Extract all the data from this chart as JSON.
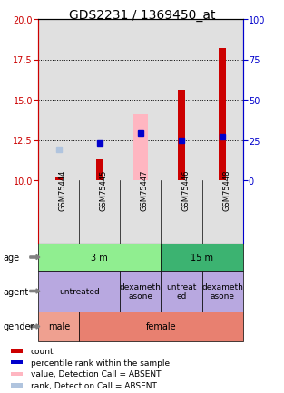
{
  "title": "GDS2231 / 1369450_at",
  "samples": [
    "GSM75444",
    "GSM75445",
    "GSM75447",
    "GSM75446",
    "GSM75448"
  ],
  "ylim_left": [
    10,
    20
  ],
  "ylim_right": [
    0,
    100
  ],
  "yticks_left": [
    10,
    12.5,
    15,
    17.5,
    20
  ],
  "yticks_right": [
    0,
    25,
    50,
    75,
    100
  ],
  "red_bars_top": [
    10.2,
    11.3,
    10.0,
    15.6,
    18.2
  ],
  "pink_bars_top": [
    10.0,
    10.0,
    14.1,
    10.0,
    10.0
  ],
  "blue_squares_y": [
    null,
    12.3,
    12.9,
    12.5,
    12.7
  ],
  "light_blue_squares_y": [
    11.9,
    null,
    null,
    null,
    null
  ],
  "age_labels": [
    [
      "3 m",
      0,
      3
    ],
    [
      "15 m",
      3,
      5
    ]
  ],
  "age_colors": [
    "#90EE90",
    "#3CB371"
  ],
  "agent_labels": [
    [
      "untreated",
      0,
      2
    ],
    [
      "dexameth\nasone",
      2,
      3
    ],
    [
      "untreat\ned",
      3,
      4
    ],
    [
      "dexameth\nasone",
      4,
      5
    ]
  ],
  "agent_color": "#B8A8E0",
  "gender_labels": [
    [
      "male",
      0,
      1
    ],
    [
      "female",
      1,
      5
    ]
  ],
  "gender_male_color": "#EFA090",
  "gender_female_color": "#E88070",
  "legend_items": [
    {
      "color": "#CC0000",
      "label": "count"
    },
    {
      "color": "#0000CC",
      "label": "percentile rank within the sample"
    },
    {
      "color": "#FFB6C1",
      "label": "value, Detection Call = ABSENT"
    },
    {
      "color": "#B0C4DE",
      "label": "rank, Detection Call = ABSENT"
    }
  ],
  "title_fontsize": 10,
  "tick_fontsize": 7,
  "sample_fontsize": 6,
  "annotation_fontsize": 7,
  "left_axis_color": "#CC0000",
  "right_axis_color": "#0000CC",
  "row_label_fontsize": 7,
  "dotted_lines": [
    12.5,
    15.0,
    17.5
  ]
}
